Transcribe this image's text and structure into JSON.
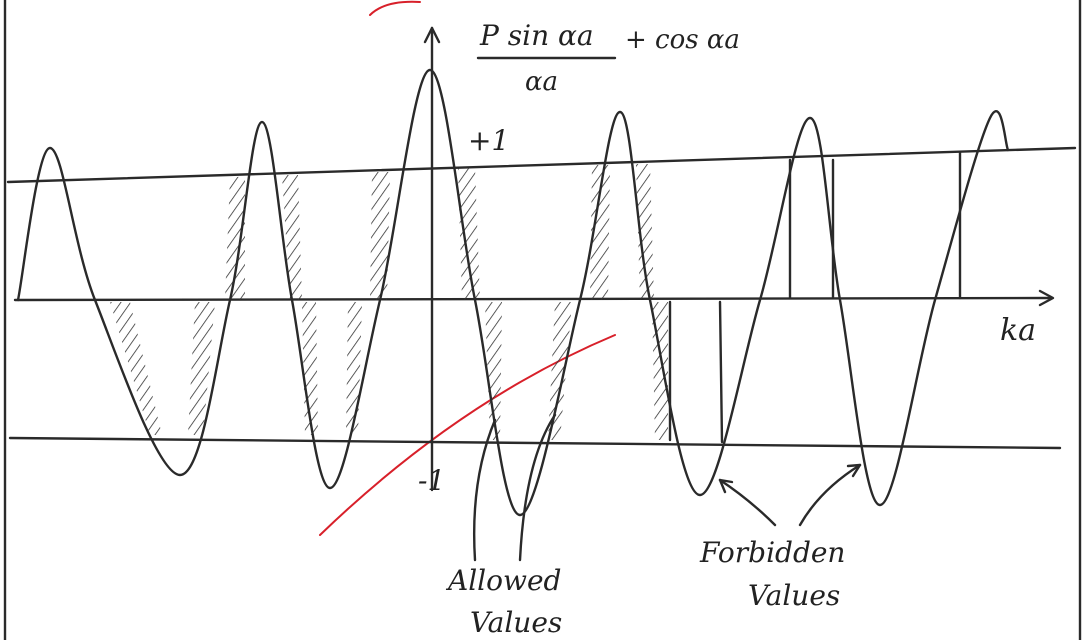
{
  "y_axis_label": {
    "numerator": "P sin αa",
    "denominator": "αa",
    "rest": "+ cos αa"
  },
  "levels": {
    "plus": "+1",
    "minus": "-1"
  },
  "x_axis_label": "ka",
  "annotations": {
    "allowed": [
      "Allowed",
      "Values"
    ],
    "forbidden": [
      "Forbidden",
      "Values"
    ]
  }
}
